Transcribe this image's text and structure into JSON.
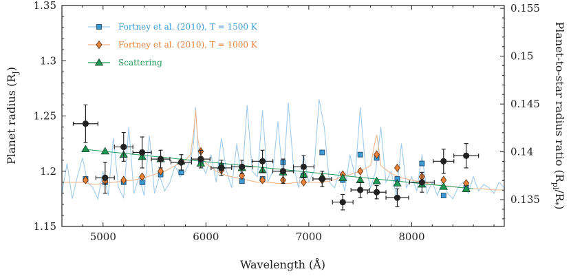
{
  "chart_data": {
    "type": "scatter",
    "xlabel": "Wavelength (Å)",
    "ylabel_left": "Planet radius (R",
    "ylabel_left_sub": "J",
    "ylabel_left_end": ")",
    "ylabel_right": "Planet-to-star radius ratio (R",
    "ylabel_right_sub1": "pl",
    "ylabel_right_mid": "/R",
    "ylabel_right_sub2": "*",
    "ylabel_right_end": ")",
    "xlim": [
      4600,
      8900
    ],
    "ylim_left": [
      1.15,
      1.35
    ],
    "ylim_right": [
      0.1322,
      0.1553
    ],
    "x_ticks": [
      5000,
      6000,
      7000,
      8000
    ],
    "x_tick_labels": [
      "5000",
      "6000",
      "7000",
      "8000"
    ],
    "y_left_ticks": [
      1.15,
      1.2,
      1.25,
      1.3,
      1.35
    ],
    "y_left_tick_labels": [
      "1.15",
      "1.2",
      "1.25",
      "1.3",
      "1.35"
    ],
    "y_right_ticks": [
      0.135,
      0.14,
      0.145,
      0.15,
      0.155
    ],
    "y_right_tick_labels": [
      "0.135",
      "0.14",
      "0.145",
      "0.15",
      "0.155"
    ],
    "legend_position": "top-left",
    "legend": [
      {
        "label": "Fortney et al. (2010), T = 1500 K",
        "color": "#3a9bd5",
        "marker": "square"
      },
      {
        "label": "Fortney et al. (2010), T = 1000 K",
        "color": "#e8823a",
        "marker": "diamond"
      },
      {
        "label": "Scattering",
        "color": "#1f9a55",
        "marker": "triangle"
      }
    ],
    "observed": {
      "color": "#222222",
      "points": [
        {
          "x": 4830,
          "y": 1.243,
          "xerr": 120,
          "yerr": 0.017
        },
        {
          "x": 5020,
          "y": 1.194,
          "xerr": 90,
          "yerr": 0.014
        },
        {
          "x": 5200,
          "y": 1.222,
          "xerr": 90,
          "yerr": 0.013
        },
        {
          "x": 5380,
          "y": 1.217,
          "xerr": 90,
          "yerr": 0.014
        },
        {
          "x": 5560,
          "y": 1.211,
          "xerr": 90,
          "yerr": 0.008
        },
        {
          "x": 5760,
          "y": 1.208,
          "xerr": 100,
          "yerr": 0.007
        },
        {
          "x": 5950,
          "y": 1.211,
          "xerr": 90,
          "yerr": 0.008
        },
        {
          "x": 6150,
          "y": 1.203,
          "xerr": 100,
          "yerr": 0.007
        },
        {
          "x": 6350,
          "y": 1.204,
          "xerr": 100,
          "yerr": 0.006
        },
        {
          "x": 6550,
          "y": 1.209,
          "xerr": 100,
          "yerr": 0.01
        },
        {
          "x": 6750,
          "y": 1.2,
          "xerr": 100,
          "yerr": 0.011
        },
        {
          "x": 6950,
          "y": 1.204,
          "xerr": 100,
          "yerr": 0.01
        },
        {
          "x": 7130,
          "y": 1.193,
          "xerr": 90,
          "yerr": 0.007
        },
        {
          "x": 7330,
          "y": 1.172,
          "xerr": 100,
          "yerr": 0.007
        },
        {
          "x": 7500,
          "y": 1.183,
          "xerr": 90,
          "yerr": 0.007
        },
        {
          "x": 7660,
          "y": 1.181,
          "xerr": 90,
          "yerr": 0.006
        },
        {
          "x": 7860,
          "y": 1.176,
          "xerr": 110,
          "yerr": 0.008
        },
        {
          "x": 8100,
          "y": 1.19,
          "xerr": 120,
          "yerr": 0.009
        },
        {
          "x": 8310,
          "y": 1.209,
          "xerr": 100,
          "yerr": 0.011
        },
        {
          "x": 8530,
          "y": 1.214,
          "xerr": 120,
          "yerr": 0.011
        }
      ]
    },
    "model_1500K_binned": {
      "x": [
        4830,
        5020,
        5200,
        5380,
        5560,
        5760,
        5950,
        6150,
        6350,
        6550,
        6750,
        6950,
        7130,
        7330,
        7500,
        7660,
        7860,
        8100,
        8310,
        8530
      ],
      "y": [
        1.193,
        1.19,
        1.19,
        1.19,
        1.197,
        1.199,
        1.208,
        1.205,
        1.191,
        1.193,
        1.208,
        1.196,
        1.217,
        1.192,
        1.215,
        1.212,
        1.193,
        1.207,
        1.178,
        1.185
      ]
    },
    "model_1000K_binned": {
      "x": [
        4830,
        5020,
        5200,
        5380,
        5560,
        5760,
        5950,
        6150,
        6350,
        6550,
        6750,
        6950,
        7130,
        7330,
        7500,
        7660,
        7860,
        8100,
        8310,
        8530
      ],
      "y": [
        1.192,
        1.191,
        1.192,
        1.195,
        1.2,
        1.208,
        1.218,
        1.201,
        1.196,
        1.192,
        1.192,
        1.19,
        1.192,
        1.197,
        1.2,
        1.215,
        1.203,
        1.195,
        1.192,
        1.189
      ]
    },
    "scattering_binned": {
      "x": [
        4830,
        5020,
        5200,
        5380,
        5560,
        5760,
        5950,
        6150,
        6350,
        6550,
        6750,
        6950,
        7130,
        7330,
        7500,
        7660,
        7860,
        8100,
        8310,
        8530
      ],
      "y": [
        1.22,
        1.218,
        1.215,
        1.213,
        1.211,
        1.209,
        1.207,
        1.205,
        1.203,
        1.201,
        1.199,
        1.197,
        1.195,
        1.194,
        1.192,
        1.191,
        1.189,
        1.188,
        1.186,
        1.184
      ]
    },
    "model_1500K_spectrum": {
      "x": [
        4600,
        4650,
        4700,
        4750,
        4800,
        4850,
        4900,
        4950,
        5000,
        5050,
        5100,
        5150,
        5200,
        5250,
        5300,
        5350,
        5400,
        5450,
        5500,
        5550,
        5600,
        5650,
        5700,
        5750,
        5800,
        5850,
        5880,
        5900,
        5930,
        5960,
        6000,
        6050,
        6100,
        6150,
        6200,
        6250,
        6300,
        6350,
        6400,
        6450,
        6500,
        6550,
        6600,
        6650,
        6700,
        6750,
        6800,
        6850,
        6900,
        6950,
        7000,
        7050,
        7100,
        7150,
        7200,
        7250,
        7300,
        7350,
        7400,
        7450,
        7500,
        7550,
        7600,
        7650,
        7700,
        7750,
        7800,
        7850,
        7900,
        7950,
        8000,
        8050,
        8100,
        8150,
        8200,
        8250,
        8300,
        8350,
        8400,
        8450,
        8500,
        8550,
        8600,
        8650,
        8700,
        8750,
        8800,
        8850,
        8900
      ],
      "y": [
        1.18,
        1.207,
        1.175,
        1.195,
        1.212,
        1.19,
        1.185,
        1.175,
        1.2,
        1.178,
        1.23,
        1.185,
        1.176,
        1.24,
        1.18,
        1.195,
        1.178,
        1.232,
        1.18,
        1.196,
        1.182,
        1.19,
        1.205,
        1.195,
        1.2,
        1.21,
        1.225,
        1.258,
        1.21,
        1.205,
        1.198,
        1.215,
        1.19,
        1.23,
        1.2,
        1.185,
        1.225,
        1.19,
        1.26,
        1.2,
        1.195,
        1.255,
        1.19,
        1.2,
        1.245,
        1.19,
        1.262,
        1.205,
        1.185,
        1.215,
        1.19,
        1.2,
        1.265,
        1.24,
        1.19,
        1.185,
        1.2,
        1.182,
        1.215,
        1.195,
        1.258,
        1.205,
        1.185,
        1.2,
        1.24,
        1.19,
        1.2,
        1.178,
        1.225,
        1.185,
        1.195,
        1.182,
        1.215,
        1.18,
        1.19,
        1.178,
        1.192,
        1.18,
        1.175,
        1.185,
        1.19,
        1.18,
        1.195,
        1.182,
        1.188,
        1.185,
        1.18,
        1.19,
        1.185
      ]
    },
    "model_1000K_spectrum": {
      "x": [
        4600,
        4700,
        4800,
        4900,
        5000,
        5100,
        5200,
        5300,
        5400,
        5500,
        5600,
        5700,
        5800,
        5850,
        5880,
        5900,
        5920,
        5950,
        6000,
        6100,
        6200,
        6300,
        6400,
        6500,
        6600,
        6700,
        6800,
        6900,
        7000,
        7100,
        7200,
        7300,
        7400,
        7500,
        7600,
        7640,
        7660,
        7680,
        7700,
        7800,
        7900,
        8000,
        8100,
        8200,
        8300,
        8400,
        8500,
        8600,
        8700,
        8800,
        8900
      ],
      "y": [
        1.19,
        1.19,
        1.19,
        1.188,
        1.189,
        1.19,
        1.191,
        1.192,
        1.194,
        1.197,
        1.2,
        1.205,
        1.21,
        1.215,
        1.235,
        1.255,
        1.23,
        1.215,
        1.207,
        1.2,
        1.196,
        1.194,
        1.192,
        1.19,
        1.19,
        1.189,
        1.189,
        1.19,
        1.19,
        1.19,
        1.191,
        1.194,
        1.197,
        1.2,
        1.205,
        1.225,
        1.233,
        1.22,
        1.205,
        1.198,
        1.194,
        1.192,
        1.19,
        1.188,
        1.187,
        1.186,
        1.185,
        1.184,
        1.184,
        1.183,
        1.183
      ]
    },
    "scattering_curve": {
      "x": [
        4800,
        8600
      ],
      "y": [
        1.22,
        1.184
      ]
    }
  }
}
